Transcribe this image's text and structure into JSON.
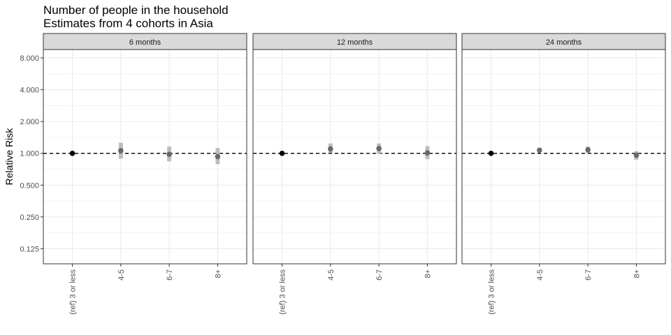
{
  "chart_data": {
    "type": "scatter",
    "title": "Number of people in the household",
    "subtitle": "Estimates from 4 cohorts in Asia",
    "ylabel": "Relative Risk",
    "xlabel": "",
    "y_scale": "log2",
    "ylim": [
      0.09,
      9.6
    ],
    "y_ticks": [
      0.125,
      0.25,
      0.5,
      1,
      2,
      4,
      8
    ],
    "y_tick_labels": [
      "0.125",
      "0.250",
      "0.500",
      "1.000",
      "2.000",
      "4.000",
      "8.000"
    ],
    "categories": [
      "(ref) 3 or less",
      "4-5",
      "6-7",
      "8+"
    ],
    "reference_line": 1,
    "grid": true,
    "legend": "none",
    "panels": [
      {
        "label": "6 months",
        "estimates": [
          1.0,
          1.06,
          0.98,
          0.93
        ],
        "lower": [
          1.0,
          0.89,
          0.84,
          0.79
        ],
        "upper": [
          1.0,
          1.26,
          1.16,
          1.12
        ]
      },
      {
        "label": "12 months",
        "estimates": [
          1.0,
          1.1,
          1.11,
          1.01
        ],
        "lower": [
          1.0,
          1.01,
          0.99,
          0.88
        ],
        "upper": [
          1.0,
          1.24,
          1.24,
          1.17
        ]
      },
      {
        "label": "24 months",
        "estimates": [
          1.0,
          1.07,
          1.08,
          0.96
        ],
        "lower": [
          1.0,
          1.02,
          1.01,
          0.87
        ],
        "upper": [
          1.0,
          1.13,
          1.16,
          1.05
        ]
      }
    ],
    "colors": {
      "reference_point": "#000000",
      "estimate_point": "#595959",
      "interval": "#b3b3b3",
      "strip_fill": "#d9d9d9",
      "grid": "#ebebeb",
      "panel_border": "#333333",
      "reference_line": "#000000"
    }
  }
}
